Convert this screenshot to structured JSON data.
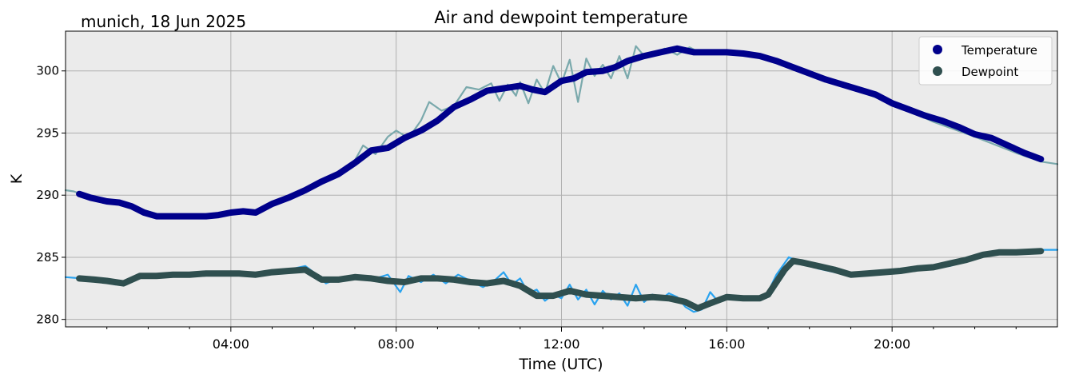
{
  "chart_data": {
    "type": "line",
    "title": "Air and dewpoint temperature",
    "location_label": "munich, 18 Jun 2025",
    "xlabel": "Time (UTC)",
    "ylabel": "K",
    "xlim": [
      0,
      24
    ],
    "ylim": [
      279.4,
      303.2
    ],
    "x_ticks": [
      {
        "x": 4,
        "label": "04:00"
      },
      {
        "x": 8,
        "label": "08:00"
      },
      {
        "x": 12,
        "label": "12:00"
      },
      {
        "x": 16,
        "label": "16:00"
      },
      {
        "x": 20,
        "label": "20:00"
      }
    ],
    "y_ticks": [
      {
        "y": 280,
        "label": "280"
      },
      {
        "y": 285,
        "label": "285"
      },
      {
        "y": 290,
        "label": "290"
      },
      {
        "y": 295,
        "label": "295"
      },
      {
        "y": 300,
        "label": "300"
      }
    ],
    "grid": true,
    "legend_position": "top-right",
    "colors": {
      "background": "#ebebeb",
      "grid": "#b0b0b0",
      "temperature": "#00008b",
      "temperature_raw": "#7aa9ac",
      "dewpoint": "#2f4f4f",
      "dewpoint_raw": "#2aa3ef"
    },
    "series": [
      {
        "name": "Temperature",
        "role": "smoothed",
        "x": [
          0.33,
          0.6,
          1.0,
          1.3,
          1.6,
          1.9,
          2.2,
          2.6,
          3.0,
          3.4,
          3.7,
          4.0,
          4.3,
          4.6,
          5.0,
          5.4,
          5.8,
          6.2,
          6.6,
          7.0,
          7.4,
          7.8,
          8.2,
          8.6,
          9.0,
          9.4,
          9.8,
          10.2,
          10.6,
          11.0,
          11.3,
          11.6,
          12.0,
          12.3,
          12.6,
          13.0,
          13.3,
          13.6,
          14.0,
          14.4,
          14.8,
          15.2,
          15.6,
          16.0,
          16.4,
          16.8,
          17.2,
          17.6,
          18.0,
          18.4,
          18.8,
          19.2,
          19.6,
          20.0,
          20.4,
          20.8,
          21.2,
          21.6,
          22.0,
          22.4,
          22.8,
          23.2,
          23.6
        ],
        "values": [
          290.1,
          289.8,
          289.5,
          289.4,
          289.1,
          288.6,
          288.3,
          288.3,
          288.3,
          288.3,
          288.4,
          288.6,
          288.7,
          288.6,
          289.3,
          289.8,
          290.4,
          291.1,
          291.7,
          292.6,
          293.6,
          293.8,
          294.6,
          295.2,
          296.0,
          297.1,
          297.7,
          298.4,
          298.6,
          298.8,
          298.5,
          298.3,
          299.2,
          299.4,
          299.9,
          300.0,
          300.3,
          300.8,
          301.2,
          301.5,
          301.8,
          301.5,
          301.5,
          301.5,
          301.4,
          301.2,
          300.8,
          300.3,
          299.8,
          299.3,
          298.9,
          298.5,
          298.1,
          297.4,
          296.9,
          296.4,
          296.0,
          295.5,
          294.9,
          294.6,
          294.0,
          293.4,
          292.9
        ]
      },
      {
        "name": "Dewpoint",
        "role": "smoothed",
        "x": [
          0.33,
          0.7,
          1.0,
          1.4,
          1.8,
          2.2,
          2.6,
          3.0,
          3.4,
          3.8,
          4.2,
          4.6,
          5.0,
          5.4,
          5.8,
          6.2,
          6.6,
          7.0,
          7.4,
          7.8,
          8.2,
          8.6,
          9.0,
          9.4,
          9.8,
          10.2,
          10.6,
          11.0,
          11.4,
          11.8,
          12.2,
          12.6,
          13.0,
          13.4,
          13.8,
          14.2,
          14.6,
          15.0,
          15.3,
          15.6,
          16.0,
          16.4,
          16.8,
          17.0,
          17.2,
          17.4,
          17.6,
          17.8,
          18.2,
          18.6,
          19.0,
          19.4,
          19.8,
          20.2,
          20.6,
          21.0,
          21.4,
          21.8,
          22.2,
          22.6,
          23.0,
          23.6
        ],
        "values": [
          283.3,
          283.2,
          283.1,
          282.9,
          283.5,
          283.5,
          283.6,
          283.6,
          283.7,
          283.7,
          283.7,
          283.6,
          283.8,
          283.9,
          284.0,
          283.2,
          283.2,
          283.4,
          283.3,
          283.1,
          283.0,
          283.3,
          283.3,
          283.2,
          283.0,
          282.9,
          283.1,
          282.7,
          281.9,
          281.9,
          282.3,
          282.0,
          281.9,
          281.8,
          281.7,
          281.8,
          281.7,
          281.4,
          280.9,
          281.3,
          281.8,
          281.7,
          281.7,
          282.0,
          283.0,
          284.0,
          284.7,
          284.6,
          284.3,
          284.0,
          283.6,
          283.7,
          283.8,
          283.9,
          284.1,
          284.2,
          284.5,
          284.8,
          285.2,
          285.4,
          285.4,
          285.5
        ]
      },
      {
        "name": "Temperature raw",
        "role": "raw",
        "x": [
          0.0,
          0.2,
          0.6,
          1.2,
          1.8,
          2.4,
          3.0,
          3.6,
          4.2,
          4.6,
          5.0,
          5.6,
          6.2,
          6.8,
          7.0,
          7.2,
          7.5,
          7.8,
          8.0,
          8.3,
          8.6,
          8.8,
          9.1,
          9.4,
          9.7,
          10.0,
          10.3,
          10.5,
          10.7,
          10.9,
          11.0,
          11.2,
          11.4,
          11.6,
          11.8,
          12.0,
          12.2,
          12.4,
          12.6,
          12.8,
          13.0,
          13.2,
          13.4,
          13.6,
          13.8,
          14.0,
          14.2,
          14.5,
          14.8,
          15.1,
          15.4,
          15.7,
          16.0,
          16.4,
          16.8,
          17.2,
          18.0,
          19.0,
          20.0,
          21.0,
          22.0,
          23.0,
          23.6,
          24.0
        ],
        "values": [
          290.4,
          290.3,
          289.8,
          289.4,
          288.9,
          288.3,
          288.3,
          288.3,
          288.7,
          288.5,
          289.3,
          290.1,
          291.2,
          292.0,
          292.8,
          294.0,
          293.3,
          294.7,
          295.2,
          294.6,
          296.0,
          297.5,
          296.8,
          297.2,
          298.7,
          298.5,
          299.0,
          297.6,
          298.9,
          298.0,
          299.1,
          297.4,
          299.3,
          298.2,
          300.4,
          299.0,
          300.9,
          297.5,
          301.0,
          299.6,
          300.5,
          299.4,
          301.2,
          299.4,
          302.0,
          301.2,
          301.4,
          301.8,
          301.3,
          301.9,
          301.4,
          301.6,
          301.5,
          301.4,
          301.2,
          301.0,
          299.9,
          298.6,
          297.4,
          295.9,
          294.7,
          293.4,
          292.7,
          292.5
        ]
      },
      {
        "name": "Dewpoint raw",
        "role": "raw",
        "x": [
          0.0,
          0.4,
          0.8,
          1.2,
          1.6,
          2.0,
          2.4,
          3.0,
          3.6,
          4.2,
          4.8,
          5.4,
          5.8,
          6.0,
          6.3,
          6.6,
          7.0,
          7.4,
          7.8,
          8.1,
          8.3,
          8.6,
          8.9,
          9.2,
          9.5,
          9.8,
          10.1,
          10.4,
          10.6,
          10.8,
          11.0,
          11.2,
          11.4,
          11.6,
          11.8,
          12.0,
          12.2,
          12.4,
          12.6,
          12.8,
          13.0,
          13.2,
          13.4,
          13.6,
          13.8,
          14.0,
          14.2,
          14.4,
          14.6,
          14.8,
          15.0,
          15.2,
          15.4,
          15.6,
          15.8,
          16.0,
          16.4,
          16.8,
          17.0,
          17.2,
          17.5,
          17.8,
          18.2,
          18.6,
          19.0,
          19.6,
          20.2,
          20.8,
          21.4,
          22.0,
          22.6,
          23.2,
          23.6,
          24.0
        ],
        "values": [
          283.4,
          283.3,
          283.2,
          282.8,
          283.2,
          283.6,
          283.5,
          283.6,
          283.7,
          283.8,
          283.6,
          284.0,
          284.3,
          283.8,
          282.9,
          283.3,
          283.5,
          283.2,
          283.6,
          282.2,
          283.5,
          283.0,
          283.6,
          282.9,
          283.6,
          283.1,
          282.6,
          283.2,
          283.8,
          282.8,
          283.3,
          282.1,
          282.4,
          281.5,
          282.0,
          281.7,
          282.8,
          281.6,
          282.4,
          281.2,
          282.3,
          281.6,
          282.1,
          281.1,
          282.8,
          281.4,
          282.0,
          281.6,
          282.1,
          281.8,
          281.0,
          280.6,
          280.8,
          282.2,
          281.4,
          281.8,
          281.6,
          281.7,
          282.2,
          283.6,
          285.0,
          284.6,
          284.1,
          283.8,
          283.6,
          283.8,
          283.9,
          284.0,
          284.3,
          284.9,
          285.3,
          285.4,
          285.6,
          285.6
        ]
      }
    ]
  }
}
